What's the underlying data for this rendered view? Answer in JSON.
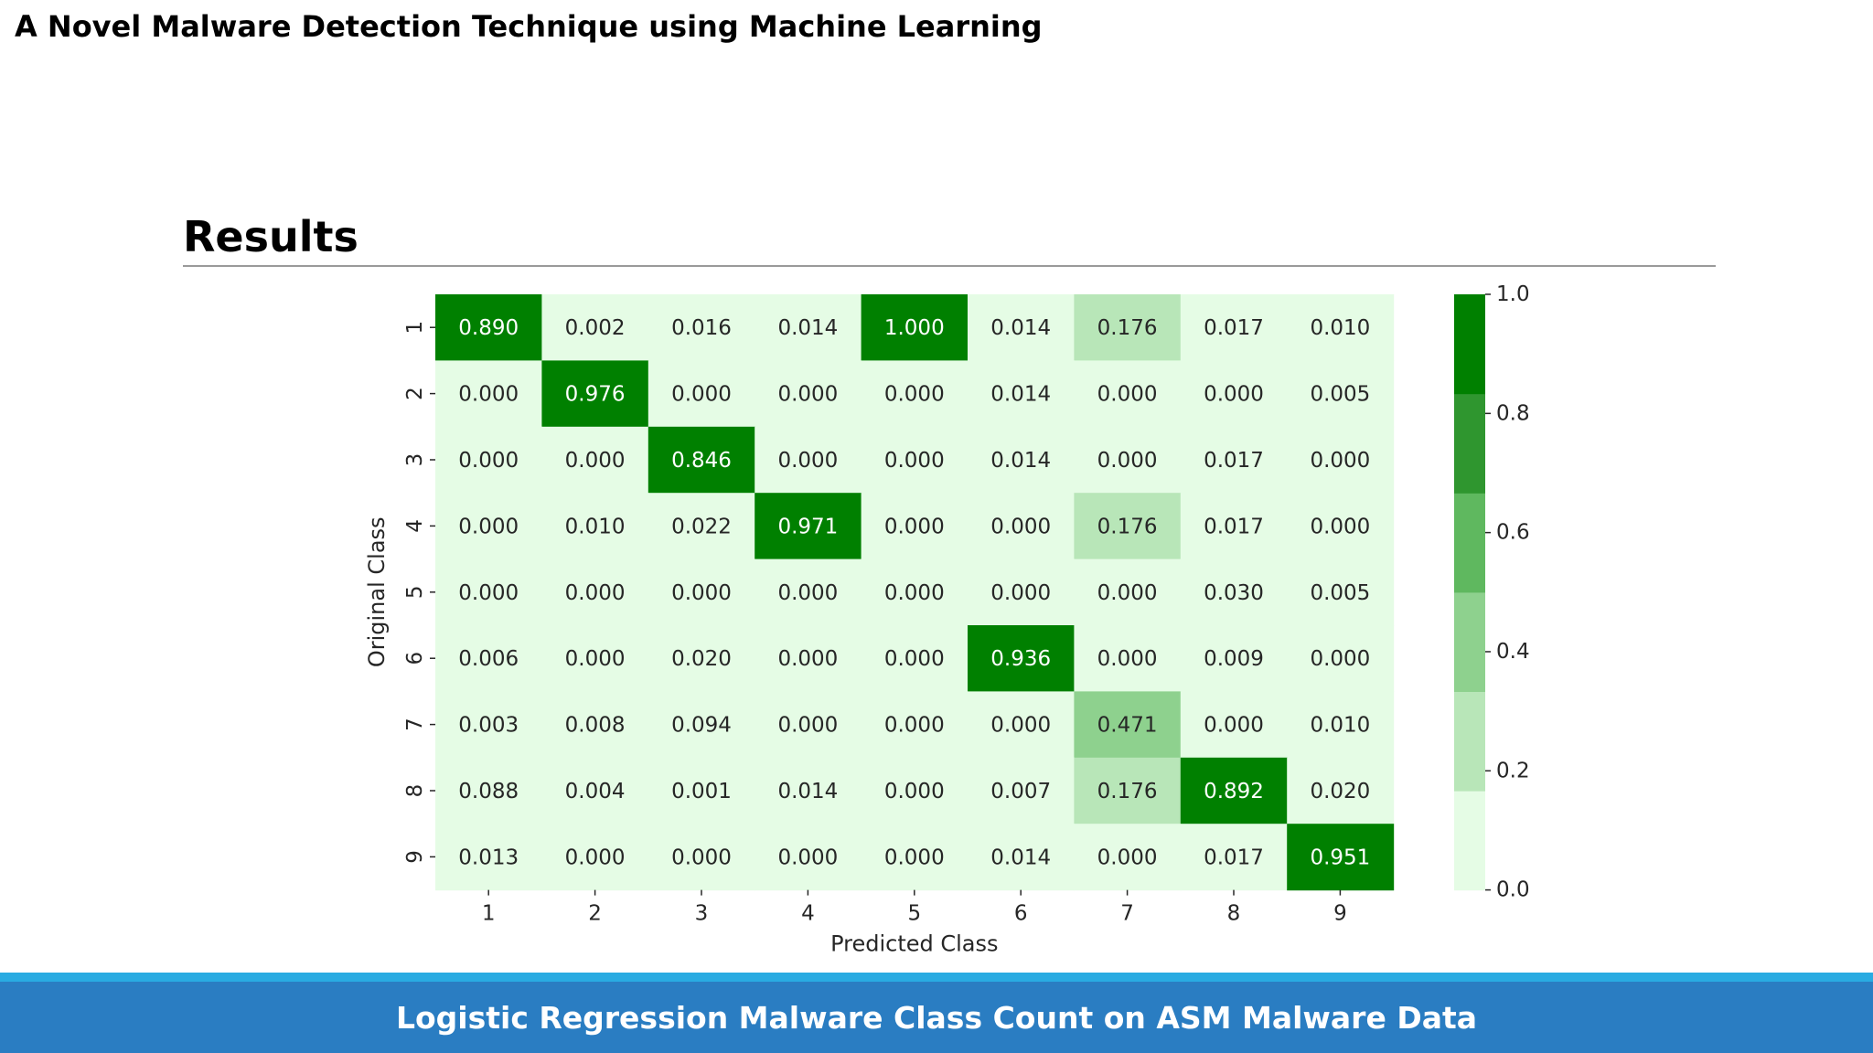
{
  "slide": {
    "deck_title": "A Novel Malware Detection Technique using Machine Learning",
    "heading": "Results",
    "caption": "Logistic Regression Malware Class Count on ASM Malware Data"
  },
  "colors": {
    "footer_bar": "#2a7dc2",
    "footer_accent": "#29abe2",
    "colormap": [
      "#e5fce5",
      "#b8e6b8",
      "#8ed18e",
      "#5fb85f",
      "#2f962f",
      "#008000"
    ]
  },
  "chart_data": {
    "type": "heatmap",
    "xlabel": "Predicted Class",
    "ylabel": "Original Class",
    "x_categories": [
      "1",
      "2",
      "3",
      "4",
      "5",
      "6",
      "7",
      "8",
      "9"
    ],
    "y_categories": [
      "1",
      "2",
      "3",
      "4",
      "5",
      "6",
      "7",
      "8",
      "9"
    ],
    "values": [
      [
        0.89,
        0.002,
        0.016,
        0.014,
        1.0,
        0.014,
        0.176,
        0.017,
        0.01
      ],
      [
        0.0,
        0.976,
        0.0,
        0.0,
        0.0,
        0.014,
        0.0,
        0.0,
        0.005
      ],
      [
        0.0,
        0.0,
        0.846,
        0.0,
        0.0,
        0.014,
        0.0,
        0.017,
        0.0
      ],
      [
        0.0,
        0.01,
        0.022,
        0.971,
        0.0,
        0.0,
        0.176,
        0.017,
        0.0
      ],
      [
        0.0,
        0.0,
        0.0,
        0.0,
        0.0,
        0.0,
        0.0,
        0.03,
        0.005
      ],
      [
        0.006,
        0.0,
        0.02,
        0.0,
        0.0,
        0.936,
        0.0,
        0.009,
        0.0
      ],
      [
        0.003,
        0.008,
        0.094,
        0.0,
        0.0,
        0.0,
        0.471,
        0.0,
        0.01
      ],
      [
        0.088,
        0.004,
        0.001,
        0.014,
        0.0,
        0.007,
        0.176,
        0.892,
        0.02
      ],
      [
        0.013,
        0.0,
        0.0,
        0.0,
        0.0,
        0.014,
        0.0,
        0.017,
        0.951
      ]
    ],
    "value_format": "0.000",
    "colorbar": {
      "range": [
        0.0,
        1.0
      ],
      "ticks": [
        "0.0",
        "0.2",
        "0.4",
        "0.6",
        "0.8",
        "1.0"
      ],
      "bins": 6
    }
  }
}
